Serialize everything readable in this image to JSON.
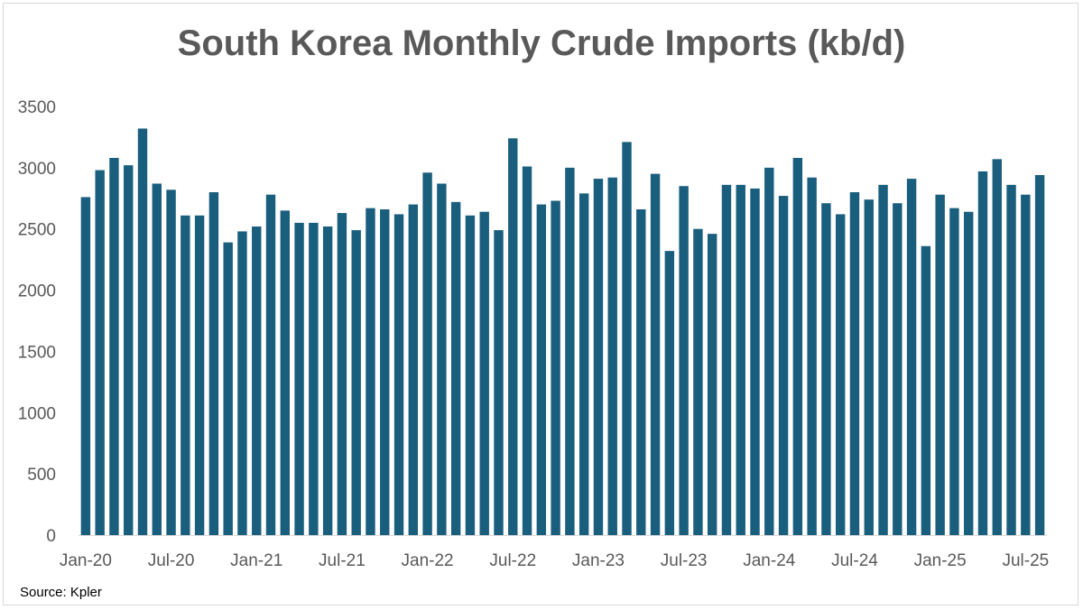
{
  "chart_data": {
    "type": "bar",
    "title": "South Korea Monthly Crude Imports (kb/d)",
    "source": "Source: Kpler",
    "color": "#1a5e7e",
    "ylim": [
      0,
      3500
    ],
    "yticks": [
      0,
      500,
      1000,
      1500,
      2000,
      2500,
      3000,
      3500
    ],
    "grid": false,
    "legend": "none",
    "x_tick_labels": [
      {
        "index": 0,
        "label": "Jan-20"
      },
      {
        "index": 6,
        "label": "Jul-20"
      },
      {
        "index": 12,
        "label": "Jan-21"
      },
      {
        "index": 18,
        "label": "Jul-21"
      },
      {
        "index": 24,
        "label": "Jan-22"
      },
      {
        "index": 30,
        "label": "Jul-22"
      },
      {
        "index": 36,
        "label": "Jan-23"
      },
      {
        "index": 42,
        "label": "Jul-23"
      },
      {
        "index": 48,
        "label": "Jan-24"
      },
      {
        "index": 54,
        "label": "Jul-24"
      },
      {
        "index": 60,
        "label": "Jan-25"
      },
      {
        "index": 66,
        "label": "Jul-25"
      }
    ],
    "categories": [
      "Jan-20",
      "Feb-20",
      "Mar-20",
      "Apr-20",
      "May-20",
      "Jun-20",
      "Jul-20",
      "Aug-20",
      "Sep-20",
      "Oct-20",
      "Nov-20",
      "Dec-20",
      "Jan-21",
      "Feb-21",
      "Mar-21",
      "Apr-21",
      "May-21",
      "Jun-21",
      "Jul-21",
      "Aug-21",
      "Sep-21",
      "Oct-21",
      "Nov-21",
      "Dec-21",
      "Jan-22",
      "Feb-22",
      "Mar-22",
      "Apr-22",
      "May-22",
      "Jun-22",
      "Jul-22",
      "Aug-22",
      "Sep-22",
      "Oct-22",
      "Nov-22",
      "Dec-22",
      "Jan-23",
      "Feb-23",
      "Mar-23",
      "Apr-23",
      "May-23",
      "Jun-23",
      "Jul-23",
      "Aug-23",
      "Sep-23",
      "Oct-23",
      "Nov-23",
      "Dec-23",
      "Jan-24",
      "Feb-24",
      "Mar-24",
      "Apr-24",
      "May-24",
      "Jun-24",
      "Jul-24",
      "Aug-24",
      "Sep-24",
      "Oct-24",
      "Nov-24",
      "Dec-24",
      "Jan-25",
      "Feb-25",
      "Mar-25",
      "Apr-25",
      "May-25",
      "Jun-25",
      "Jul-25",
      "Aug-25"
    ],
    "values": [
      2760,
      2980,
      3080,
      3020,
      3320,
      2870,
      2820,
      2610,
      2610,
      2800,
      2390,
      2480,
      2520,
      2780,
      2650,
      2550,
      2550,
      2520,
      2630,
      2490,
      2670,
      2660,
      2620,
      2700,
      2960,
      2870,
      2720,
      2610,
      2640,
      2490,
      3240,
      3010,
      2700,
      2730,
      3000,
      2790,
      2910,
      2920,
      3210,
      2660,
      2950,
      2320,
      2850,
      2500,
      2460,
      2860,
      2860,
      2830,
      3000,
      2770,
      3080,
      2920,
      2710,
      2620,
      2800,
      2740,
      2860,
      2710,
      2910,
      2360,
      2780,
      2670,
      2640,
      2970,
      3070,
      2860,
      2780,
      2940
    ]
  }
}
